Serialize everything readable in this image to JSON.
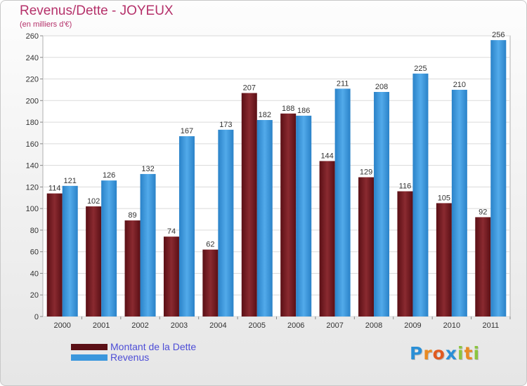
{
  "colors": {
    "title": "#b5316a",
    "dette": "#7a1d24",
    "revenus": "#3b97dd",
    "legend_text": "#4d4dd6"
  },
  "logo": {
    "letters": [
      "P",
      "r",
      "o",
      "x",
      "i",
      "t",
      "i"
    ],
    "colors": [
      "#2a8fd6",
      "#e88a22",
      "#e05a20",
      "#2a8fd6",
      "#8bc53f",
      "#e88a22",
      "#8bc53f"
    ]
  },
  "chart_data": {
    "type": "bar",
    "title": "Revenus/Dette - JOYEUX",
    "subtitle": "(en milliers d'€)",
    "categories": [
      "2000",
      "2001",
      "2002",
      "2003",
      "2004",
      "2005",
      "2006",
      "2007",
      "2008",
      "2009",
      "2010",
      "2011"
    ],
    "series": [
      {
        "name": "Montant de la Dette",
        "values": [
          114,
          102,
          89,
          74,
          62,
          207,
          188,
          144,
          129,
          116,
          105,
          92
        ]
      },
      {
        "name": "Revenus",
        "values": [
          121,
          126,
          132,
          167,
          173,
          182,
          186,
          211,
          208,
          225,
          210,
          256
        ]
      }
    ],
    "ylim": [
      0,
      260
    ],
    "yticks": [
      0,
      20,
      40,
      60,
      80,
      100,
      120,
      140,
      160,
      180,
      200,
      220,
      240,
      260
    ],
    "grid": true,
    "legend_position": "bottom-left"
  }
}
